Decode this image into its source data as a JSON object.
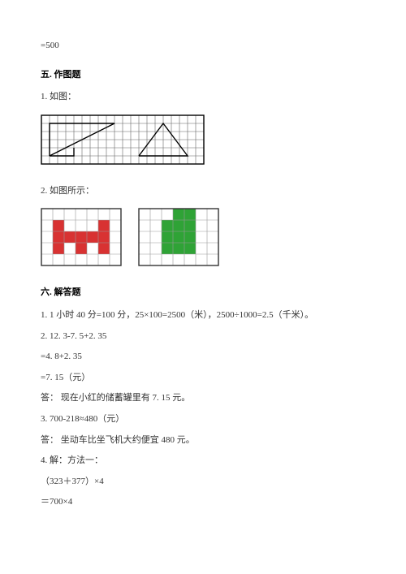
{
  "eq500": "=500",
  "section5": {
    "title": "五. 作图题"
  },
  "q1": {
    "label": "1. 如图："
  },
  "fig1": {
    "grid": {
      "cols": 20,
      "rows": 6,
      "cell": 10,
      "stroke": "#666666",
      "border": "#000000"
    },
    "shapes": [
      {
        "type": "polyline",
        "points": [
          [
            1,
            5
          ],
          [
            1,
            1
          ],
          [
            9,
            1
          ],
          [
            1,
            5
          ],
          [
            9,
            1
          ]
        ],
        "stroke": "#000000",
        "width": 1.4
      },
      {
        "type": "polyline",
        "points": [
          [
            1,
            5
          ],
          [
            4,
            5
          ],
          [
            4,
            4
          ]
        ],
        "stroke": "#000000",
        "width": 1.4
      },
      {
        "type": "polyline",
        "points": [
          [
            12,
            5
          ],
          [
            18,
            5
          ],
          [
            15,
            1
          ],
          [
            12,
            5
          ]
        ],
        "stroke": "#000000",
        "width": 1.4
      }
    ]
  },
  "q2": {
    "label": "2. 如图所示："
  },
  "fig2": {
    "grid": {
      "cols": 7,
      "rows": 5,
      "cell": 14,
      "stroke": "#999999",
      "border": "#333333"
    },
    "left": {
      "fill": "#d83232",
      "cells": [
        [
          1,
          1
        ],
        [
          5,
          1
        ],
        [
          1,
          2
        ],
        [
          2,
          2
        ],
        [
          3,
          2
        ],
        [
          4,
          2
        ],
        [
          5,
          2
        ],
        [
          1,
          3
        ],
        [
          3,
          3
        ],
        [
          5,
          3
        ]
      ]
    },
    "right": {
      "fill": "#2fa336",
      "cells": [
        [
          3,
          0
        ],
        [
          4,
          0
        ],
        [
          2,
          1
        ],
        [
          3,
          1
        ],
        [
          4,
          1
        ],
        [
          2,
          2
        ],
        [
          3,
          2
        ],
        [
          4,
          2
        ],
        [
          2,
          3
        ],
        [
          3,
          3
        ],
        [
          4,
          3
        ]
      ]
    }
  },
  "section6": {
    "title": "六. 解答题"
  },
  "a1": "1. 1 小时 40 分=100 分，25×100=2500（米），2500÷1000=2.5（千米）。",
  "a2": "2. 12. 3-7. 5+2. 35",
  "a2b": "=4. 8+2. 35",
  "a2c": "=7. 15（元）",
  "a2d": "答：   现在小红的储蓄罐里有 7. 15 元。",
  "a3": "3. 700-218≈480（元）",
  "a3b": "答：   坐动车比坐飞机大约便宜 480 元。",
  "a4": "4. 解：方法一：",
  "a4b": "（323＋377）×4",
  "a4c": "＝700×4"
}
